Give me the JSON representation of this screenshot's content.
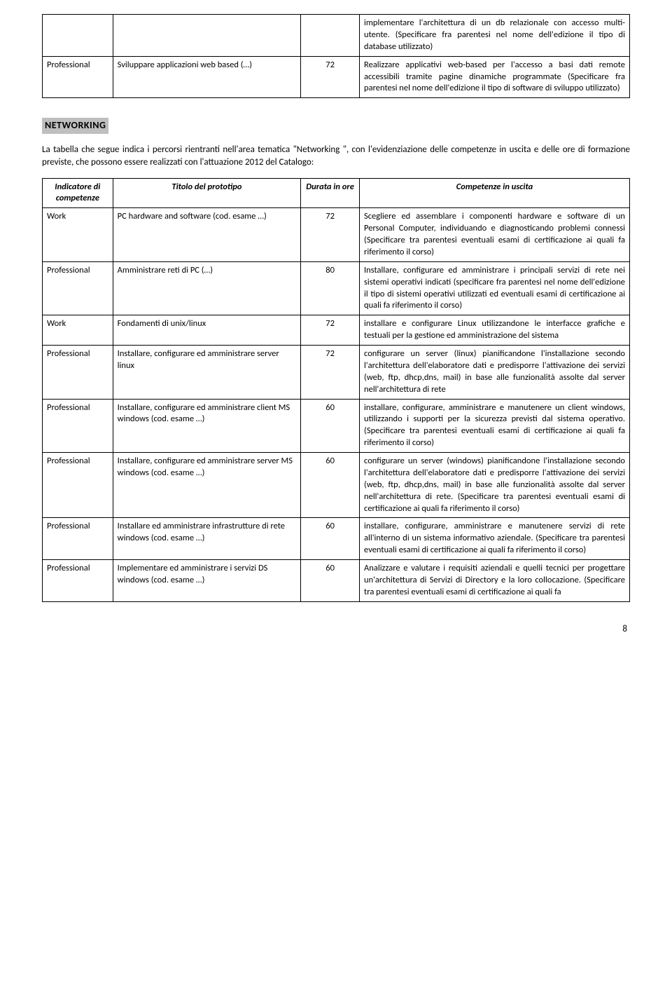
{
  "top_table": {
    "rows": [
      {
        "indicator": "",
        "title": "",
        "duration": "",
        "competence": "implementare l'architettura di un db relazionale con accesso multi-utente. (Specificare fra parentesi nel nome dell'edizione il tipo di database utilizzato)"
      },
      {
        "indicator": "Professional",
        "title": "Sviluppare applicazioni web based (…)",
        "duration": "72",
        "competence": "Realizzare applicativi web-based per l'accesso a basi dati remote accessibili tramite pagine dinamiche programmate (Specificare fra parentesi nel nome dell'edizione il tipo di software di sviluppo utilizzato)"
      }
    ]
  },
  "section": {
    "heading": "NETWORKING",
    "intro": "La tabella che segue indica i percorsi rientranti nell'area tematica \"Networking \", con l'evidenziazione delle competenze in uscita e delle ore di formazione previste, che possono essere realizzati con l'attuazione 2012 del Catalogo:"
  },
  "main_table": {
    "headers": {
      "indicator": "Indicatore di competenze",
      "title": "Titolo del prototipo",
      "duration": "Durata in ore",
      "competence": "Competenze in uscita"
    },
    "rows": [
      {
        "indicator": "Work",
        "title": "PC hardware and software (cod. esame …)",
        "duration": "72",
        "competence": "Scegliere ed assemblare i componenti hardware e software di un Personal Computer, individuando e diagnosticando problemi connessi (Specificare tra parentesi eventuali esami di certificazione ai quali fa riferimento il corso)"
      },
      {
        "indicator": "Professional",
        "title": "Amministrare reti di PC (…)",
        "duration": "80",
        "competence": "Installare, configurare ed amministrare i principali servizi di rete nei sistemi operativi indicati (specificare fra parentesi nel nome dell'edizione il tipo di sistemi operativi utilizzati ed eventuali esami di certificazione ai quali fa riferimento il corso)"
      },
      {
        "indicator": "Work",
        "title": "Fondamenti di unix/linux",
        "duration": "72",
        "competence": "installare e configurare Linux utilizzandone le interfacce grafiche e testuali per la gestione ed amministrazione del sistema"
      },
      {
        "indicator": "Professional",
        "title": "Installare, configurare ed amministrare server linux",
        "duration": "72",
        "competence": "configurare un server (linux) pianificandone l'installazione secondo l'architettura dell'elaboratore dati e predisporre l'attivazione dei servizi (web, ftp, dhcp,dns, mail) in base alle funzionalità assolte dal server nell'architettura di rete"
      },
      {
        "indicator": "Professional",
        "title": "Installare, configurare ed amministrare client MS windows (cod. esame …)",
        "duration": "60",
        "competence": "installare, configurare, amministrare e manutenere un client windows, utilizzando i supporti per la sicurezza previsti dal sistema operativo. (Specificare tra parentesi eventuali esami di certificazione ai quali fa riferimento il corso)"
      },
      {
        "indicator": "Professional",
        "title": "Installare, configurare ed amministrare server MS windows (cod. esame …)",
        "duration": "60",
        "competence": "configurare un server (windows) pianificandone l'installazione secondo l'architettura dell'elaboratore dati e predisporre l'attivazione dei servizi (web, ftp, dhcp,dns, mail) in base alle funzionalità assolte dal server nell'architettura di rete. (Specificare tra parentesi eventuali esami di certificazione ai quali fa riferimento il corso)"
      },
      {
        "indicator": "Professional",
        "title": "Installare ed amministrare infrastrutture di rete windows (cod. esame …)",
        "duration": "60",
        "competence": "installare, configurare, amministrare e manutenere servizi di rete all'interno di un sistema informativo aziendale. (Specificare tra parentesi eventuali esami di certificazione ai quali fa riferimento il corso)"
      },
      {
        "indicator": "Professional",
        "title": "Implementare ed amministrare i servizi DS windows (cod. esame …)",
        "duration": "60",
        "competence": "Analizzare e valutare i requisiti aziendali e quelli tecnici per progettare un'architettura di Servizi di Directory e la loro collocazione. (Specificare tra parentesi eventuali esami di certificazione ai quali fa"
      }
    ]
  },
  "page_number": "8"
}
